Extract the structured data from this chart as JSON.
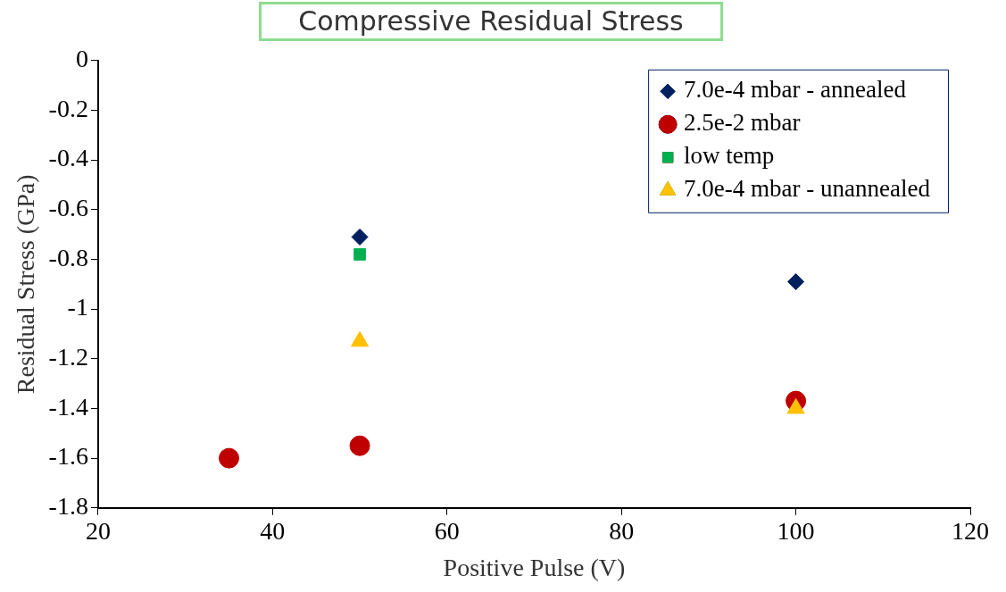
{
  "chart_data": {
    "type": "scatter",
    "title": "Compressive Residual Stress",
    "xlabel": "Positive Pulse (V)",
    "ylabel": "Residual Stress (GPa)",
    "xlim": [
      20,
      120
    ],
    "xticks": [
      20,
      40,
      60,
      80,
      100,
      120
    ],
    "ylim": [
      -1.8,
      0
    ],
    "yticks": [
      -1.8,
      -1.6,
      -1.4,
      -1.2,
      -1,
      -0.8,
      -0.6,
      -0.4,
      -0.2,
      0
    ],
    "grid": false,
    "legend": "top right",
    "series": [
      {
        "name": "7.0e-4 mbar - annealed",
        "color": "#002060",
        "marker": "diamond",
        "x": [
          50,
          100
        ],
        "values": [
          -0.71,
          -0.89
        ]
      },
      {
        "name": "2.5e-2 mbar",
        "color": "#c00000",
        "marker": "circle",
        "x": [
          35,
          50,
          100
        ],
        "values": [
          -1.6,
          -1.55,
          -1.37
        ]
      },
      {
        "name": "low temp",
        "color": "#00b050",
        "marker": "square",
        "x": [
          50
        ],
        "values": [
          -0.78
        ]
      },
      {
        "name": "7.0e-4 mbar - unannealed",
        "color": "#ffc000",
        "marker": "triangle",
        "x": [
          50,
          100
        ],
        "values": [
          -1.13,
          -1.4
        ]
      }
    ]
  }
}
